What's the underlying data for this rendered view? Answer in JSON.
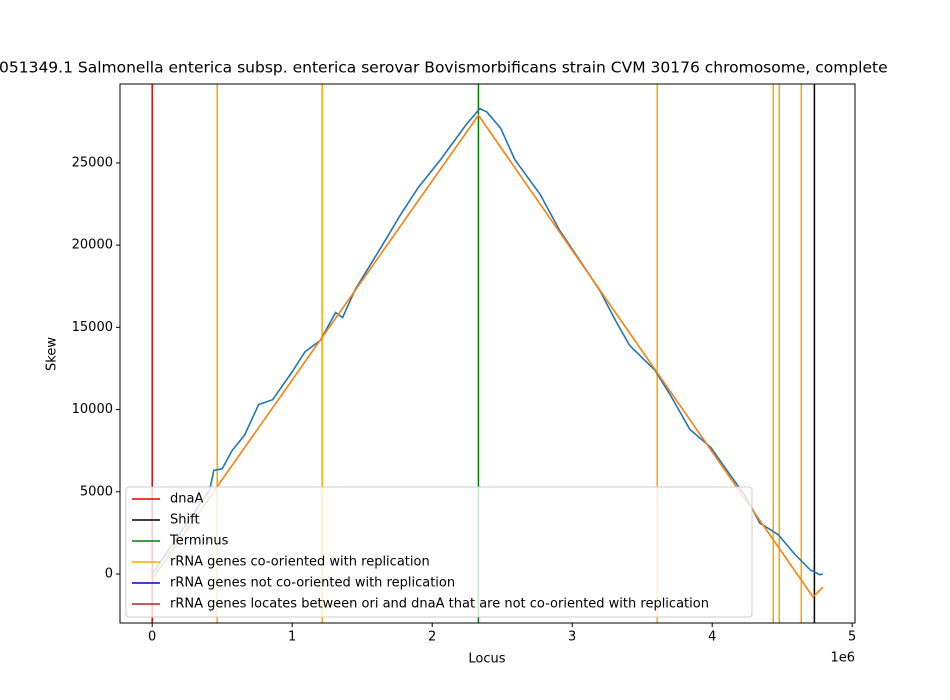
{
  "chart_data": {
    "type": "line",
    "title": "051349.1 Salmonella enterica subsp. enterica serovar Bovismorbificans strain CVM 30176 chromosome, complete",
    "xlabel": "Locus",
    "ylabel": "Skew",
    "x_offset_label": "1e6",
    "xlim": [
      -0.23,
      5.02
    ],
    "ylim": [
      -2980,
      29800
    ],
    "xticks": [
      0,
      1,
      2,
      3,
      4,
      5
    ],
    "yticks": [
      0,
      5000,
      10000,
      15000,
      20000,
      25000
    ],
    "grid": false,
    "legend_loc": "lower left",
    "skew": {
      "color": "#1f77b4",
      "x": [
        0,
        0.2,
        0.41,
        0.44,
        0.5,
        0.57,
        0.66,
        0.76,
        0.86,
        1.0,
        1.09,
        1.2,
        1.31,
        1.36,
        1.45,
        1.63,
        1.77,
        1.9,
        2.06,
        2.24,
        2.34,
        2.39,
        2.49,
        2.59,
        2.77,
        2.91,
        3.06,
        3.2,
        3.31,
        3.41,
        3.59,
        3.7,
        3.84,
        3.99,
        4.13,
        4.24,
        4.34,
        4.47,
        4.59,
        4.7,
        4.77,
        4.79
      ],
      "values": [
        0,
        2500,
        5100,
        6300,
        6400,
        7500,
        8450,
        10300,
        10600,
        12300,
        13500,
        14200,
        15900,
        15600,
        17300,
        19800,
        21800,
        23500,
        25200,
        27300,
        28300,
        28100,
        27100,
        25200,
        23100,
        20900,
        19000,
        17200,
        15400,
        13900,
        12400,
        10900,
        8800,
        7700,
        6000,
        4700,
        3100,
        2400,
        1200,
        250,
        -50,
        0
      ]
    },
    "fit": {
      "color": "#ff7f0e",
      "x": [
        0,
        2.33,
        4.72,
        4.79
      ],
      "values": [
        -300,
        27900,
        -1400,
        -800
      ]
    },
    "markers": [
      {
        "name": "dnaA",
        "color": "#e00000",
        "x": [
          0
        ]
      },
      {
        "name": "Shift",
        "color": "#000000",
        "x": [
          4.73
        ]
      },
      {
        "name": "Terminus",
        "color": "#008000",
        "x": [
          2.33
        ]
      },
      {
        "name": "rRNA genes co-oriented with replication",
        "color": "#ffa500",
        "x": [
          0.464,
          1.214,
          3.607,
          4.436,
          4.479,
          4.636
        ]
      },
      {
        "name": "rRNA genes not co-oriented with replication",
        "color": "#0000cd",
        "x": []
      },
      {
        "name": "rRNA genes locates between ori and dnaA that are not co-oriented with replication",
        "color": "#b22222",
        "x": []
      }
    ]
  }
}
